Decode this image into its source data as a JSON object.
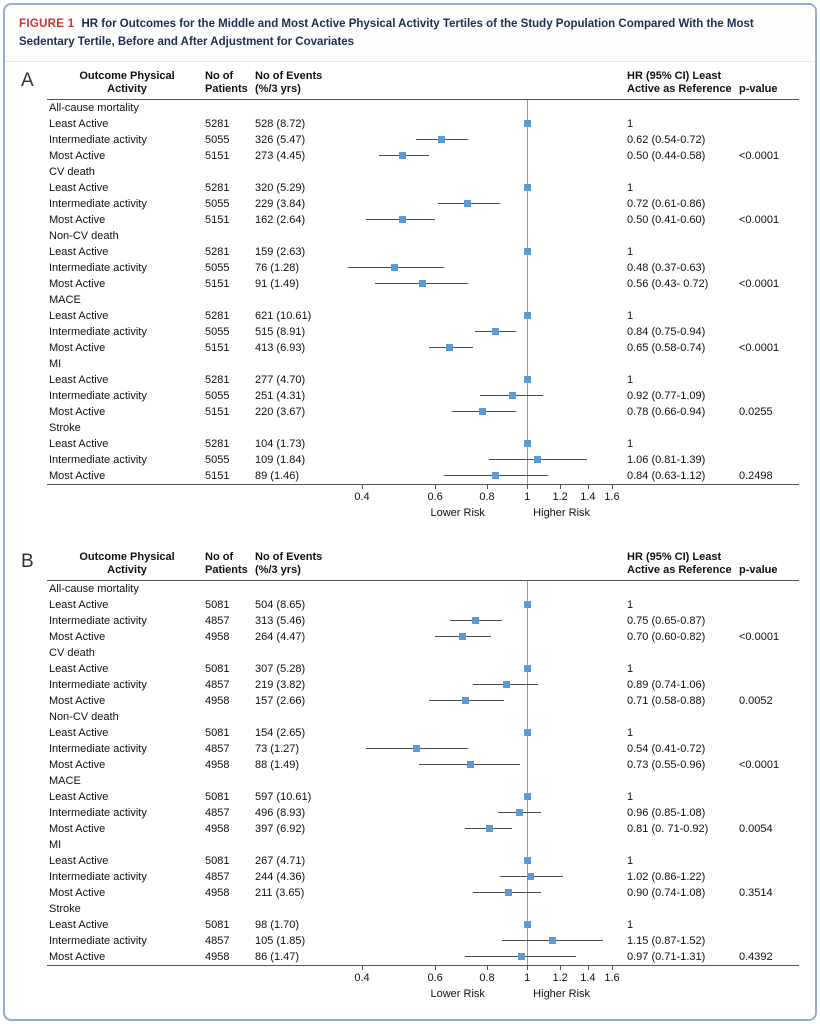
{
  "figure": {
    "label": "FIGURE 1",
    "title": "HR for Outcomes for the Middle and Most Active Physical Activity Tertiles of the Study Population Compared With the Most Sedentary Tertile, Before and After Adjustment for Covariates"
  },
  "colors": {
    "figure_label_red": "#d0342c",
    "title_navy": "#1c2f52",
    "border_blue": "#92afd3",
    "marker_blue": "#5b9bd5",
    "ci_line": "#4d4d4d",
    "reference_line": "#9a9a9a"
  },
  "chart_data": {
    "type": "scatter",
    "subtype": "forest-plot",
    "title": "HR for Outcomes for the Middle and Most Active Physical Activity Tertiles of the Study Population Compared With the Most Sedentary Tertile, Before and After Adjustment for Covariates",
    "columns": {
      "outcome": "Outcome Physical\nActivity",
      "patients": "No of\nPatients",
      "events": "No of Events\n(%/3 yrs)",
      "hr": "HR (95% CI) Least\nActive as Reference",
      "pvalue": "p-value"
    },
    "axis": {
      "scale": "log",
      "min": 0.4,
      "max": 1.6,
      "reference": 1,
      "ticks": [
        "0.4",
        "0.6",
        "0.8",
        "1",
        "1.2",
        "1.4",
        "1.6"
      ],
      "lower_label": "Lower Risk",
      "higher_label": "Higher Risk"
    },
    "panels": [
      {
        "label": "A",
        "groups": [
          {
            "name": "All-cause mortality",
            "rows": [
              {
                "activity": "Least Active",
                "patients": "5281",
                "events": "528 (8.72)",
                "hr": 1,
                "ci": null,
                "hr_text": "1",
                "pvalue": ""
              },
              {
                "activity": "Intermediate activity",
                "patients": "5055",
                "events": "326 (5.47)",
                "hr": 0.62,
                "ci": [
                  0.54,
                  0.72
                ],
                "hr_text": "0.62 (0.54-0.72)",
                "pvalue": ""
              },
              {
                "activity": "Most Active",
                "patients": "5151",
                "events": "273 (4.45)",
                "hr": 0.5,
                "ci": [
                  0.44,
                  0.58
                ],
                "hr_text": "0.50 (0.44-0.58)",
                "pvalue": "<0.0001"
              }
            ]
          },
          {
            "name": "CV death",
            "rows": [
              {
                "activity": "Least Active",
                "patients": "5281",
                "events": "320 (5.29)",
                "hr": 1,
                "ci": null,
                "hr_text": "1",
                "pvalue": ""
              },
              {
                "activity": "Intermediate activity",
                "patients": "5055",
                "events": "229 (3.84)",
                "hr": 0.72,
                "ci": [
                  0.61,
                  0.86
                ],
                "hr_text": "0.72 (0.61-0.86)",
                "pvalue": ""
              },
              {
                "activity": "Most Active",
                "patients": "5151",
                "events": "162 (2.64)",
                "hr": 0.5,
                "ci": [
                  0.41,
                  0.6
                ],
                "hr_text": "0.50 (0.41-0.60)",
                "pvalue": "<0.0001"
              }
            ]
          },
          {
            "name": "Non-CV death",
            "rows": [
              {
                "activity": "Least Active",
                "patients": "5281",
                "events": "159 (2.63)",
                "hr": 1,
                "ci": null,
                "hr_text": "1",
                "pvalue": ""
              },
              {
                "activity": "Intermediate activity",
                "patients": "5055",
                "events": "76 (1.28)",
                "hr": 0.48,
                "ci": [
                  0.37,
                  0.63
                ],
                "hr_text": "0.48 (0.37-0.63)",
                "pvalue": ""
              },
              {
                "activity": "Most Active",
                "patients": "5151",
                "events": "91 (1.49)",
                "hr": 0.56,
                "ci": [
                  0.43,
                  0.72
                ],
                "hr_text": "0.56 (0.43- 0.72)",
                "pvalue": "<0.0001"
              }
            ]
          },
          {
            "name": "MACE",
            "rows": [
              {
                "activity": "Least Active",
                "patients": "5281",
                "events": "621 (10.61)",
                "hr": 1,
                "ci": null,
                "hr_text": "1",
                "pvalue": ""
              },
              {
                "activity": "Intermediate activity",
                "patients": "5055",
                "events": "515 (8.91)",
                "hr": 0.84,
                "ci": [
                  0.75,
                  0.94
                ],
                "hr_text": "0.84 (0.75-0.94)",
                "pvalue": ""
              },
              {
                "activity": "Most Active",
                "patients": "5151",
                "events": "413 (6.93)",
                "hr": 0.65,
                "ci": [
                  0.58,
                  0.74
                ],
                "hr_text": "0.65 (0.58-0.74)",
                "pvalue": "<0.0001"
              }
            ]
          },
          {
            "name": "MI",
            "rows": [
              {
                "activity": "Least Active",
                "patients": "5281",
                "events": "277 (4.70)",
                "hr": 1,
                "ci": null,
                "hr_text": "1",
                "pvalue": ""
              },
              {
                "activity": "Intermediate activity",
                "patients": "5055",
                "events": "251 (4.31)",
                "hr": 0.92,
                "ci": [
                  0.77,
                  1.09
                ],
                "hr_text": "0.92 (0.77-1.09)",
                "pvalue": ""
              },
              {
                "activity": "Most Active",
                "patients": "5151",
                "events": "220 (3.67)",
                "hr": 0.78,
                "ci": [
                  0.66,
                  0.94
                ],
                "hr_text": "0.78 (0.66-0.94)",
                "pvalue": "0.0255"
              }
            ]
          },
          {
            "name": "Stroke",
            "rows": [
              {
                "activity": "Least Active",
                "patients": "5281",
                "events": "104 (1.73)",
                "hr": 1,
                "ci": null,
                "hr_text": "1",
                "pvalue": ""
              },
              {
                "activity": "Intermediate activity",
                "patients": "5055",
                "events": "109 (1.84)",
                "hr": 1.06,
                "ci": [
                  0.81,
                  1.39
                ],
                "hr_text": "1.06 (0.81-1.39)",
                "pvalue": ""
              },
              {
                "activity": "Most Active",
                "patients": "5151",
                "events": "89 (1.46)",
                "hr": 0.84,
                "ci": [
                  0.63,
                  1.12
                ],
                "hr_text": "0.84 (0.63-1.12)",
                "pvalue": "0.2498"
              }
            ]
          }
        ]
      },
      {
        "label": "B",
        "groups": [
          {
            "name": "All-cause mortality",
            "rows": [
              {
                "activity": "Least Active",
                "patients": "5081",
                "events": "504 (8.65)",
                "hr": 1,
                "ci": null,
                "hr_text": "1",
                "pvalue": ""
              },
              {
                "activity": "Intermediate activity",
                "patients": "4857",
                "events": "313 (5.46)",
                "hr": 0.75,
                "ci": [
                  0.65,
                  0.87
                ],
                "hr_text": "0.75 (0.65-0.87)",
                "pvalue": ""
              },
              {
                "activity": "Most Active",
                "patients": "4958",
                "events": "264 (4.47)",
                "hr": 0.7,
                "ci": [
                  0.6,
                  0.82
                ],
                "hr_text": "0.70 (0.60-0.82)",
                "pvalue": "<0.0001"
              }
            ]
          },
          {
            "name": "CV death",
            "rows": [
              {
                "activity": "Least Active",
                "patients": "5081",
                "events": "307 (5.28)",
                "hr": 1,
                "ci": null,
                "hr_text": "1",
                "pvalue": ""
              },
              {
                "activity": "Intermediate activity",
                "patients": "4857",
                "events": "219 (3.82)",
                "hr": 0.89,
                "ci": [
                  0.74,
                  1.06
                ],
                "hr_text": "0.89 (0.74-1.06)",
                "pvalue": ""
              },
              {
                "activity": "Most Active",
                "patients": "4958",
                "events": "157 (2.66)",
                "hr": 0.71,
                "ci": [
                  0.58,
                  0.88
                ],
                "hr_text": "0.71 (0.58-0.88)",
                "pvalue": "0.0052"
              }
            ]
          },
          {
            "name": "Non-CV death",
            "rows": [
              {
                "activity": "Least Active",
                "patients": "5081",
                "events": "154 (2.65)",
                "hr": 1,
                "ci": null,
                "hr_text": "1",
                "pvalue": ""
              },
              {
                "activity": "Intermediate activity",
                "patients": "4857",
                "events": "73 (1.27)",
                "hr": 0.54,
                "ci": [
                  0.41,
                  0.72
                ],
                "hr_text": "0.54 (0.41-0.72)",
                "pvalue": ""
              },
              {
                "activity": "Most Active",
                "patients": "4958",
                "events": "88 (1.49)",
                "hr": 0.73,
                "ci": [
                  0.55,
                  0.96
                ],
                "hr_text": "0.73 (0.55-0.96)",
                "pvalue": "<0.0001"
              }
            ]
          },
          {
            "name": "MACE",
            "rows": [
              {
                "activity": "Least Active",
                "patients": "5081",
                "events": "597 (10.61)",
                "hr": 1,
                "ci": null,
                "hr_text": "1",
                "pvalue": ""
              },
              {
                "activity": "Intermediate activity",
                "patients": "4857",
                "events": "496 (8.93)",
                "hr": 0.96,
                "ci": [
                  0.85,
                  1.08
                ],
                "hr_text": "0.96 (0.85-1.08)",
                "pvalue": ""
              },
              {
                "activity": "Most Active",
                "patients": "4958",
                "events": "397 (6.92)",
                "hr": 0.81,
                "ci": [
                  0.71,
                  0.92
                ],
                "hr_text": "0.81 (0. 71-0.92)",
                "pvalue": "0.0054"
              }
            ]
          },
          {
            "name": "MI",
            "rows": [
              {
                "activity": "Least Active",
                "patients": "5081",
                "events": "267 (4.71)",
                "hr": 1,
                "ci": null,
                "hr_text": "1",
                "pvalue": ""
              },
              {
                "activity": "Intermediate activity",
                "patients": "4857",
                "events": "244 (4.36)",
                "hr": 1.02,
                "ci": [
                  0.86,
                  1.22
                ],
                "hr_text": "1.02 (0.86-1.22)",
                "pvalue": ""
              },
              {
                "activity": "Most Active",
                "patients": "4958",
                "events": "211 (3.65)",
                "hr": 0.9,
                "ci": [
                  0.74,
                  1.08
                ],
                "hr_text": "0.90 (0.74-1.08)",
                "pvalue": "0.3514"
              }
            ]
          },
          {
            "name": "Stroke",
            "rows": [
              {
                "activity": "Least Active",
                "patients": "5081",
                "events": "98 (1.70)",
                "hr": 1,
                "ci": null,
                "hr_text": "1",
                "pvalue": ""
              },
              {
                "activity": "Intermediate activity",
                "patients": "4857",
                "events": "105 (1.85)",
                "hr": 1.15,
                "ci": [
                  0.87,
                  1.52
                ],
                "hr_text": "1.15 (0.87-1.52)",
                "pvalue": ""
              },
              {
                "activity": "Most Active",
                "patients": "4958",
                "events": "86 (1.47)",
                "hr": 0.97,
                "ci": [
                  0.71,
                  1.31
                ],
                "hr_text": "0.97 (0.71-1.31)",
                "pvalue": "0.4392"
              }
            ]
          }
        ]
      }
    ]
  }
}
